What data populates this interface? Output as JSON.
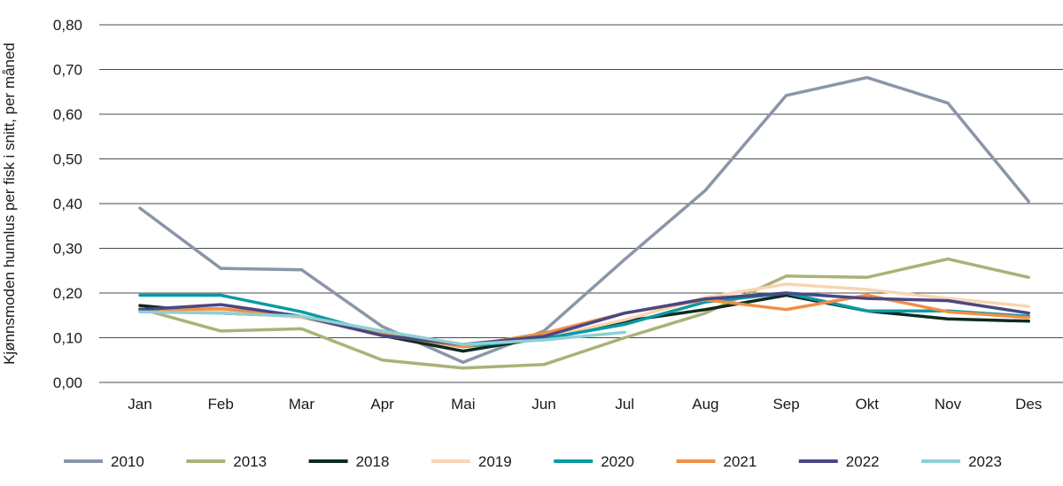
{
  "chart_data": {
    "type": "line",
    "title": "",
    "xlabel": "",
    "ylabel": "Kjønnsmoden hunnlus per fisk i snitt, per måned",
    "ylim": [
      0,
      0.8
    ],
    "yticks": [
      "0,00",
      "0,10",
      "0,20",
      "0,30",
      "0,40",
      "0,50",
      "0,60",
      "0,70",
      "0,80"
    ],
    "grid": true,
    "legend": "bottom",
    "categories": [
      "Jan",
      "Feb",
      "Mar",
      "Apr",
      "Mai",
      "Jun",
      "Jul",
      "Aug",
      "Sep",
      "Okt",
      "Nov",
      "Des"
    ],
    "series": [
      {
        "name": "2010",
        "color": "#8a96a8",
        "values": [
          0.39,
          0.255,
          0.252,
          0.125,
          0.045,
          0.115,
          0.275,
          0.43,
          0.642,
          0.682,
          0.625,
          0.405
        ]
      },
      {
        "name": "2013",
        "color": "#a9b278",
        "values": [
          0.165,
          0.115,
          0.12,
          0.05,
          0.032,
          0.04,
          0.1,
          0.155,
          0.238,
          0.235,
          0.276,
          0.235
        ]
      },
      {
        "name": "2018",
        "color": "#0e2a1e",
        "values": [
          0.172,
          0.155,
          0.148,
          0.105,
          0.07,
          0.1,
          0.137,
          0.163,
          0.195,
          0.16,
          0.142,
          0.137
        ]
      },
      {
        "name": "2019",
        "color": "#f9d5b4",
        "values": [
          0.16,
          0.158,
          0.145,
          0.105,
          0.085,
          0.1,
          0.14,
          0.19,
          0.22,
          0.208,
          0.188,
          0.17
        ]
      },
      {
        "name": "2020",
        "color": "#0a9aa4",
        "values": [
          0.195,
          0.195,
          0.158,
          0.108,
          0.08,
          0.098,
          0.13,
          0.18,
          0.2,
          0.16,
          0.16,
          0.148
        ]
      },
      {
        "name": "2021",
        "color": "#f08f47",
        "values": [
          0.162,
          0.165,
          0.148,
          0.108,
          0.08,
          0.11,
          0.155,
          0.185,
          0.163,
          0.195,
          0.158,
          0.145
        ]
      },
      {
        "name": "2022",
        "color": "#4a4784",
        "values": [
          0.163,
          0.174,
          0.148,
          0.105,
          0.085,
          0.103,
          0.155,
          0.187,
          0.2,
          0.188,
          0.183,
          0.155
        ]
      },
      {
        "name": "2023",
        "color": "#8fd0d4",
        "values": [
          0.158,
          0.155,
          0.148,
          0.115,
          0.085,
          0.095,
          0.112,
          null,
          null,
          null,
          null,
          null
        ]
      }
    ]
  }
}
